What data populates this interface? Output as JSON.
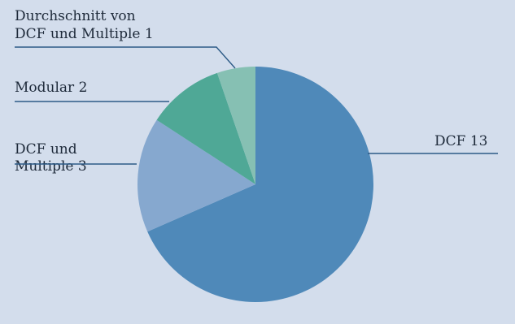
{
  "chart_data": {
    "type": "pie",
    "title": "",
    "slices": [
      {
        "label_lines": [
          "DCF 13"
        ],
        "value": 13,
        "color": "#4f89b9"
      },
      {
        "label_lines": [
          "DCF und",
          "Multiple 3"
        ],
        "value": 3,
        "color": "#86a8cf"
      },
      {
        "label_lines": [
          "Modular 2"
        ],
        "value": 2,
        "color": "#4fa896"
      },
      {
        "label_lines": [
          "Durchschnitt von",
          "DCF und Multiple 1"
        ],
        "value": 1,
        "color": "#86c0b3"
      }
    ],
    "start": "top",
    "direction": "clockwise",
    "leader_color": "#2d5b87",
    "background": "#d3ddec"
  }
}
